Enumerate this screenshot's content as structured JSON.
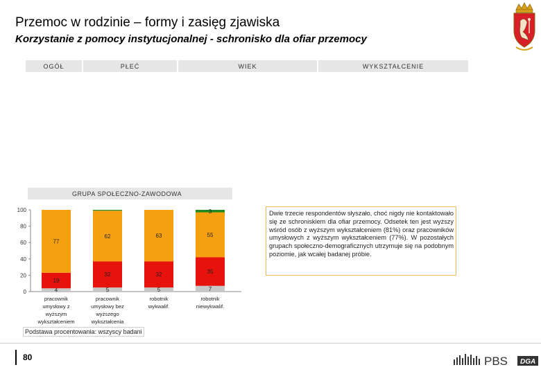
{
  "header": {
    "title": "Przemoc w rodzinie – formy i zasięg zjawiska",
    "subtitle": "Korzystanie z pomocy instytucjonalnej - schronisko dla ofiar przemocy"
  },
  "categories_bar": {
    "ogol": "OGÓŁ",
    "plec": "PŁEĆ",
    "wiek": "WIEK",
    "wyksztalcenie": "WYKSZTAŁCENIE"
  },
  "group_label": "GRUPA SPOŁECZNO-ZAWODOWA",
  "description": "Dwie trzecie respondentów słyszało, choć nigdy nie kontaktowało się ze schroniskiem dla ofiar przemocy. Odsetek ten jest wyższy wśród osób z wyższym wykształceniem (81%) oraz pracowników umysłowych z wyższym wykształceniem (77%). W pozostałych grupach społeczno-demograficznych utrzymuje się na podobnym poziomie, jak wcałej badanej próbie.",
  "footer": {
    "base": "Podstawa procentowania: wszyscy badani",
    "page_number": "80",
    "logo_text": "PBS",
    "logo_sub": "DGA"
  },
  "colors": {
    "grey": "#c8c8c8",
    "red": "#e8120c",
    "orange": "#f5a011",
    "green": "#1c8a1c",
    "box_border": "#e8b85a"
  },
  "chart_data": {
    "type": "bar",
    "stacked": true,
    "categories": [
      "pracownik umysłowy z wyższym wykształceniem",
      "pracownik umysłowy bez wyższego wykształcenia",
      "robotnik wykwalif.",
      "robotnik niewykwalif."
    ],
    "category_lines": [
      [
        "pracownik",
        "umysłowy z",
        "wyższym",
        "wykształceniem"
      ],
      [
        "pracownik",
        "umysłowy bez",
        "wyższego",
        "wykształcenia"
      ],
      [
        "robotnik",
        "wykwalif."
      ],
      [
        "robotnik",
        "niewykwalif."
      ]
    ],
    "series": [
      {
        "values": [
          4,
          5,
          5,
          7
        ],
        "labels": [
          "4",
          "5",
          "5",
          "7"
        ],
        "color": "#c8c8c8"
      },
      {
        "values": [
          19,
          32,
          32,
          35
        ],
        "labels": [
          "19",
          "32",
          "32",
          "35"
        ],
        "color": "#e8120c"
      },
      {
        "values": [
          77,
          62,
          63,
          55
        ],
        "labels": [
          "77",
          "62",
          "63",
          "55"
        ],
        "color": "#f5a011"
      },
      {
        "values": [
          0,
          1,
          0,
          3
        ],
        "labels": [
          "",
          "",
          "",
          "3"
        ],
        "color": "#1c8a1c"
      }
    ],
    "y_ticks": [
      "0",
      "20",
      "40",
      "60",
      "80",
      "100"
    ],
    "ylim": [
      0,
      100
    ],
    "grid": false
  }
}
